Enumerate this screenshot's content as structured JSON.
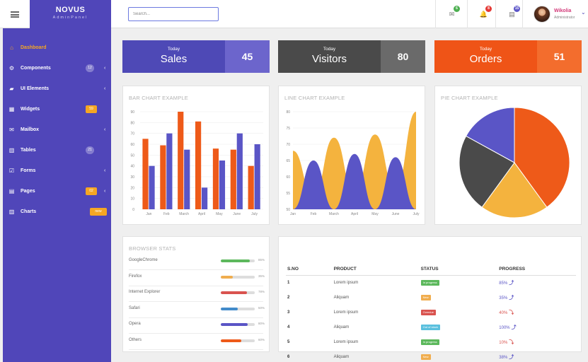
{
  "topbar": {
    "brand_name": "NOVUS",
    "brand_sub": "AdminPanel",
    "search_placeholder": "Search...",
    "icons": [
      {
        "icon": "envelope-icon",
        "glyph": "✉",
        "badge": "6",
        "color": "#4caf50"
      },
      {
        "icon": "bell-icon",
        "glyph": "🔔",
        "badge": "8",
        "color": "#e53935"
      },
      {
        "icon": "list-icon",
        "glyph": "▤",
        "badge": "15",
        "color": "#5c55c8"
      }
    ],
    "user": {
      "name": "Wikolia",
      "role": "Administrator"
    }
  },
  "sidebar": {
    "items": [
      {
        "label": "Dashboard",
        "icon": "home-icon",
        "glyph": "⌂",
        "active": true,
        "badge": "",
        "badge_style": "",
        "chevron": false
      },
      {
        "label": "Components",
        "icon": "cogs-icon",
        "glyph": "⚙",
        "active": false,
        "badge": "12",
        "badge_style": "round",
        "chevron": true
      },
      {
        "label": "UI Elements",
        "icon": "book-icon",
        "glyph": "▰",
        "active": false,
        "badge": "",
        "badge_style": "",
        "chevron": true
      },
      {
        "label": "Widgets",
        "icon": "th-icon",
        "glyph": "▦",
        "active": false,
        "badge": "59",
        "badge_style": "square",
        "chevron": false
      },
      {
        "label": "Mailbox",
        "icon": "envelope-icon",
        "glyph": "✉",
        "active": false,
        "badge": "",
        "badge_style": "",
        "chevron": true
      },
      {
        "label": "Tables",
        "icon": "table-icon",
        "glyph": "▥",
        "active": false,
        "badge": "21",
        "badge_style": "round",
        "chevron": false
      },
      {
        "label": "Forms",
        "icon": "check-square-icon",
        "glyph": "☑",
        "active": false,
        "badge": "",
        "badge_style": "",
        "chevron": true
      },
      {
        "label": "Pages",
        "icon": "file-icon",
        "glyph": "▤",
        "active": false,
        "badge": "02",
        "badge_style": "square",
        "chevron": true
      },
      {
        "label": "Charts",
        "icon": "bar-chart-icon",
        "glyph": "▥",
        "active": false,
        "badge": "new",
        "badge_style": "wide",
        "chevron": false
      }
    ]
  },
  "stats": [
    {
      "today": "Today",
      "label": "Sales",
      "value": "45",
      "color_main": "#4e49b6",
      "color_value": "#6c65cc"
    },
    {
      "today": "Today",
      "label": "Visitors",
      "value": "80",
      "color_main": "#4a4a4a",
      "color_value": "#6a6a6a"
    },
    {
      "today": "Today",
      "label": "Orders",
      "value": "51",
      "color_main": "#ef5417",
      "color_value": "#f36d2d"
    }
  ],
  "bar_chart": {
    "title": "BAR CHART EXAMPLE",
    "chart_data": {
      "type": "bar",
      "categories": [
        "Jan",
        "Feb",
        "March",
        "April",
        "May",
        "June",
        "July"
      ],
      "series": [
        {
          "values": [
            65,
            59,
            90,
            81,
            56,
            55,
            40
          ],
          "color": "#ee5a19"
        },
        {
          "values": [
            40,
            70,
            55,
            20,
            45,
            70,
            60
          ],
          "color": "#5a55c6"
        }
      ],
      "ylim": [
        0,
        90
      ],
      "yticks": [
        "0",
        "10",
        "20",
        "30",
        "40",
        "50",
        "60",
        "70",
        "80",
        "90"
      ]
    }
  },
  "line_chart": {
    "title": "LINE CHART EXAMPLE",
    "chart_data": {
      "type": "area",
      "categories": [
        "Jan",
        "Feb",
        "March",
        "April",
        "May",
        "June",
        "July"
      ],
      "series": [
        {
          "values": [
            68,
            54,
            72,
            55,
            73,
            56,
            80
          ],
          "color": "#f4b33e"
        },
        {
          "values": [
            50,
            65,
            50,
            67,
            50,
            66,
            50
          ],
          "color": "#5a55c6"
        }
      ],
      "ylim": [
        50,
        80
      ],
      "yticks": [
        "50",
        "55",
        "60",
        "65",
        "70",
        "75",
        "80"
      ]
    }
  },
  "pie_chart": {
    "title": "PIE CHART EXAMPLE",
    "chart_data": {
      "type": "pie",
      "slices": [
        {
          "value": 40,
          "color": "#ee5a19"
        },
        {
          "value": 20,
          "color": "#f4b33e"
        },
        {
          "value": 23,
          "color": "#4a4a4a"
        },
        {
          "value": 17,
          "color": "#5a55c6"
        }
      ]
    }
  },
  "browser_stats": {
    "title": "BROWSER STATS",
    "items": [
      {
        "name": "GoogleChrome",
        "percent": "85%",
        "fill": 85,
        "color": "#5cb85c"
      },
      {
        "name": "Firefox",
        "percent": "35%",
        "fill": 35,
        "color": "#f0ad4e"
      },
      {
        "name": "Internet Explorer",
        "percent": "78%",
        "fill": 78,
        "color": "#d9534f"
      },
      {
        "name": "Safari",
        "percent": "50%",
        "fill": 50,
        "color": "#428bca"
      },
      {
        "name": "Opera",
        "percent": "80%",
        "fill": 80,
        "color": "#5a55c6"
      },
      {
        "name": "Others",
        "percent": "60%",
        "fill": 60,
        "color": "#ee5a19"
      }
    ]
  },
  "orders_table": {
    "headers": [
      "S.NO",
      "PRODUCT",
      "STATUS",
      "PROGRESS"
    ],
    "rows": [
      {
        "sn": "1",
        "product": "Lorem ipsum",
        "status": "In progress",
        "status_color": "#5cb85c",
        "progress": "85%",
        "trend": "up",
        "trend_color": "#5a55c6"
      },
      {
        "sn": "2",
        "product": "Aliquam",
        "status": "New",
        "status_color": "#f0ad4e",
        "progress": "35%",
        "trend": "up",
        "trend_color": "#5a55c6"
      },
      {
        "sn": "3",
        "product": "Lorem ipsum",
        "status": "Overdue",
        "status_color": "#d9534f",
        "progress": "40%",
        "trend": "down",
        "trend_color": "#d9534f"
      },
      {
        "sn": "4",
        "product": "Aliquam",
        "status": "Out of stock",
        "status_color": "#5bc0de",
        "progress": "100%",
        "trend": "up",
        "trend_color": "#5a55c6"
      },
      {
        "sn": "5",
        "product": "Lorem ipsum",
        "status": "In progress",
        "status_color": "#5cb85c",
        "progress": "10%",
        "trend": "down",
        "trend_color": "#d9534f"
      },
      {
        "sn": "6",
        "product": "Aliquam",
        "status": "New",
        "status_color": "#f0ad4e",
        "progress": "38%",
        "trend": "up",
        "trend_color": "#5a55c6"
      }
    ]
  }
}
